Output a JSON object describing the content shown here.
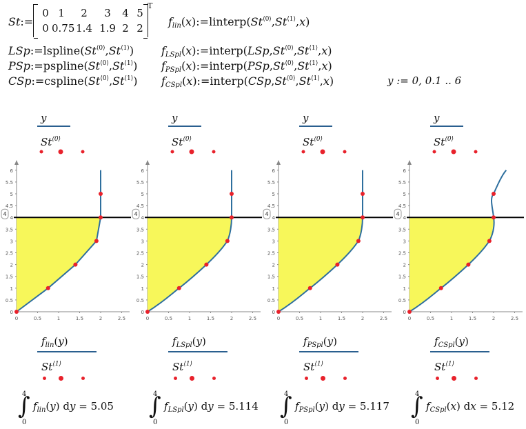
{
  "definitions": {
    "st_name": "St",
    "matrix_row0": [
      "0",
      "1",
      "2",
      "3",
      "4",
      "5"
    ],
    "matrix_row1": [
      "0",
      "0.75",
      "1.4",
      "1.9",
      "2",
      "2"
    ],
    "transpose": "T",
    "flin_def": "linterp",
    "lsp_fn": "lspline",
    "psp_fn": "pspline",
    "csp_fn": "cspline",
    "interp_fn": "interp",
    "y_range": "y := 0, 0.1 .. 6"
  },
  "plots": [
    {
      "name": "lin",
      "top_label": "y",
      "top_label2": "St",
      "bottom_label_fn": "f",
      "bottom_sub": "lin",
      "bottom_label2": "St",
      "integral_fn": "f",
      "integral_sub": "lin",
      "integral_var": "y",
      "integral_result": "5.05"
    },
    {
      "name": "lspl",
      "top_label": "y",
      "top_label2": "St",
      "bottom_label_fn": "f",
      "bottom_sub": "LSpl",
      "bottom_label2": "St",
      "integral_fn": "f",
      "integral_sub": "LSpl",
      "integral_var": "y",
      "integral_result": "5.114"
    },
    {
      "name": "pspl",
      "top_label": "y",
      "top_label2": "St",
      "bottom_label_fn": "f",
      "bottom_sub": "PSpl",
      "bottom_label2": "St",
      "integral_fn": "f",
      "integral_sub": "PSpl",
      "integral_var": "y",
      "integral_result": "5.117"
    },
    {
      "name": "cspl",
      "top_label": "y",
      "top_label2": "St",
      "bottom_label_fn": "f",
      "bottom_sub": "CSpl",
      "bottom_label2": "St",
      "integral_fn": "f",
      "integral_sub": "CSpl",
      "integral_var": "x",
      "integral_result": "5.12"
    }
  ],
  "integral_upper": "4",
  "integral_lower": "0",
  "marker_value": "4",
  "colors": {
    "curve": "#2e6f9e",
    "point": "#e8212b",
    "fill": "#f7f75a",
    "label_line": "#2a5f8f",
    "axis": "#888888"
  },
  "chart_data": {
    "type": "line",
    "points_x": [
      0,
      0.75,
      1.4,
      1.9,
      2,
      2
    ],
    "points_y": [
      0,
      1,
      2,
      3,
      4,
      5
    ],
    "horizontal_line_y": 4,
    "fill_region": "area between y-axis and curve from y=0 to y=4",
    "xlim": [
      0,
      2.6
    ],
    "ylim": [
      0,
      6.3
    ],
    "x_ticks": [
      "0",
      "0.5",
      "1",
      "1.5",
      "2",
      "2.5"
    ],
    "y_ticks": [
      "0",
      "0.5",
      "1",
      "1.5",
      "2",
      "2.5",
      "3",
      "3.5",
      "4",
      "4.5",
      "5",
      "5.5",
      "6"
    ],
    "cspl_top_x": 2.3,
    "cspl_top_y": 6
  }
}
